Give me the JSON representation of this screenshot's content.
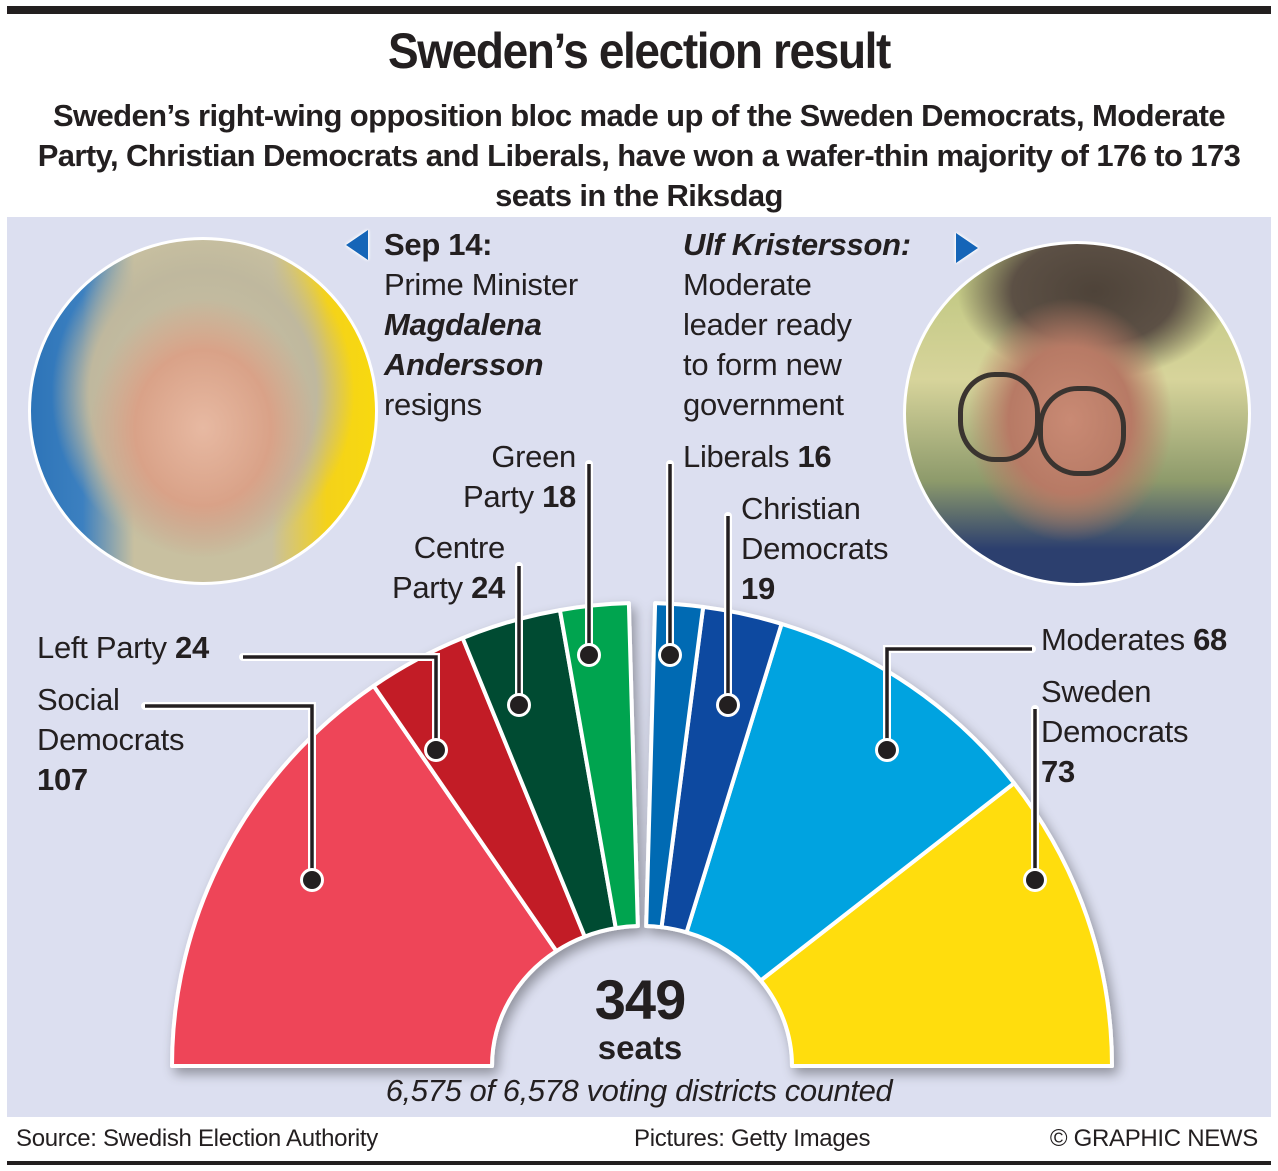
{
  "header": {
    "title": "Sweden’s election result",
    "subtitle": "Sweden’s right-wing opposition bloc made up of the Sweden Democrats, Moderate Party, Christian Democrats and Liberals, have won a wafer-thin majority of 176 to 173 seats in the Riksdag"
  },
  "left_caption": {
    "date": "Sep 14:",
    "line1": "Prime Minister",
    "name1": "Magdalena",
    "name2": "Andersson",
    "line2": "resigns"
  },
  "right_caption": {
    "name": "Ulf Kristersson:",
    "line1": "Moderate",
    "line2": "leader ready",
    "line3": "to form new",
    "line4": "government"
  },
  "photos": {
    "left": "photo-magdalena-andersson",
    "right": "photo-ulf-kristersson"
  },
  "chart_data": {
    "type": "pie",
    "subtype": "hemicycle",
    "title": "Sweden’s election result",
    "total_seats": 349,
    "center_label": "349",
    "center_unit": "seats",
    "blocs": [
      {
        "name": "left",
        "total": 173
      },
      {
        "name": "right",
        "total": 176
      }
    ],
    "series": [
      {
        "name": "Social Democrats",
        "label_text": "Social Democrats",
        "value": 107,
        "color": "#ee4459",
        "bloc": "left"
      },
      {
        "name": "Left Party",
        "label_text": "Left Party",
        "value": 24,
        "color": "#c21e28",
        "bloc": "left"
      },
      {
        "name": "Centre Party",
        "label_text": "Centre Party",
        "value": 24,
        "color": "#004b33",
        "bloc": "left"
      },
      {
        "name": "Green Party",
        "label_text": "Green Party",
        "value": 18,
        "color": "#00a450",
        "bloc": "left"
      },
      {
        "name": "Liberals",
        "label_text": "Liberals",
        "value": 16,
        "color": "#006ab3",
        "bloc": "right"
      },
      {
        "name": "Christian Democrats",
        "label_text": "Christian Democrats",
        "value": 19,
        "color": "#1149a0",
        "bloc": "right"
      },
      {
        "name": "Moderates",
        "label_text": "Moderates",
        "value": 68,
        "color": "#00a3e0",
        "bloc": "right"
      },
      {
        "name": "Sweden Democrats",
        "label_text": "Sweden Democrats",
        "value": 73,
        "color": "#ffdd11",
        "bloc": "right"
      }
    ],
    "note": "6,575 of 6,578 voting districts counted"
  },
  "labels": {
    "social_democrats": {
      "l1": "Social",
      "l2": "Democrats",
      "num": "107"
    },
    "left_party": {
      "l1": "Left Party ",
      "num": "24"
    },
    "centre_party": {
      "l1": "Centre",
      "l2": "Party ",
      "num": "24"
    },
    "green_party": {
      "l1": "Green",
      "l2": "Party ",
      "num": "18"
    },
    "liberals": {
      "l1": "Liberals ",
      "num": "16"
    },
    "christian_democrats": {
      "l1": "Christian",
      "l2": "Democrats",
      "num": "19"
    },
    "moderates": {
      "l1": "Moderates ",
      "num": "68"
    },
    "sweden_democrats": {
      "l1": "Sweden",
      "l2": "Democrats",
      "num": "73"
    }
  },
  "footer": {
    "source": "Source: Swedish Election Authority",
    "pictures": "Pictures: Getty Images",
    "credit": "© GRAPHIC NEWS"
  },
  "colors": {
    "panel_bg": "#dcdff0",
    "arrow": "#1565b8",
    "text": "#231f20"
  }
}
